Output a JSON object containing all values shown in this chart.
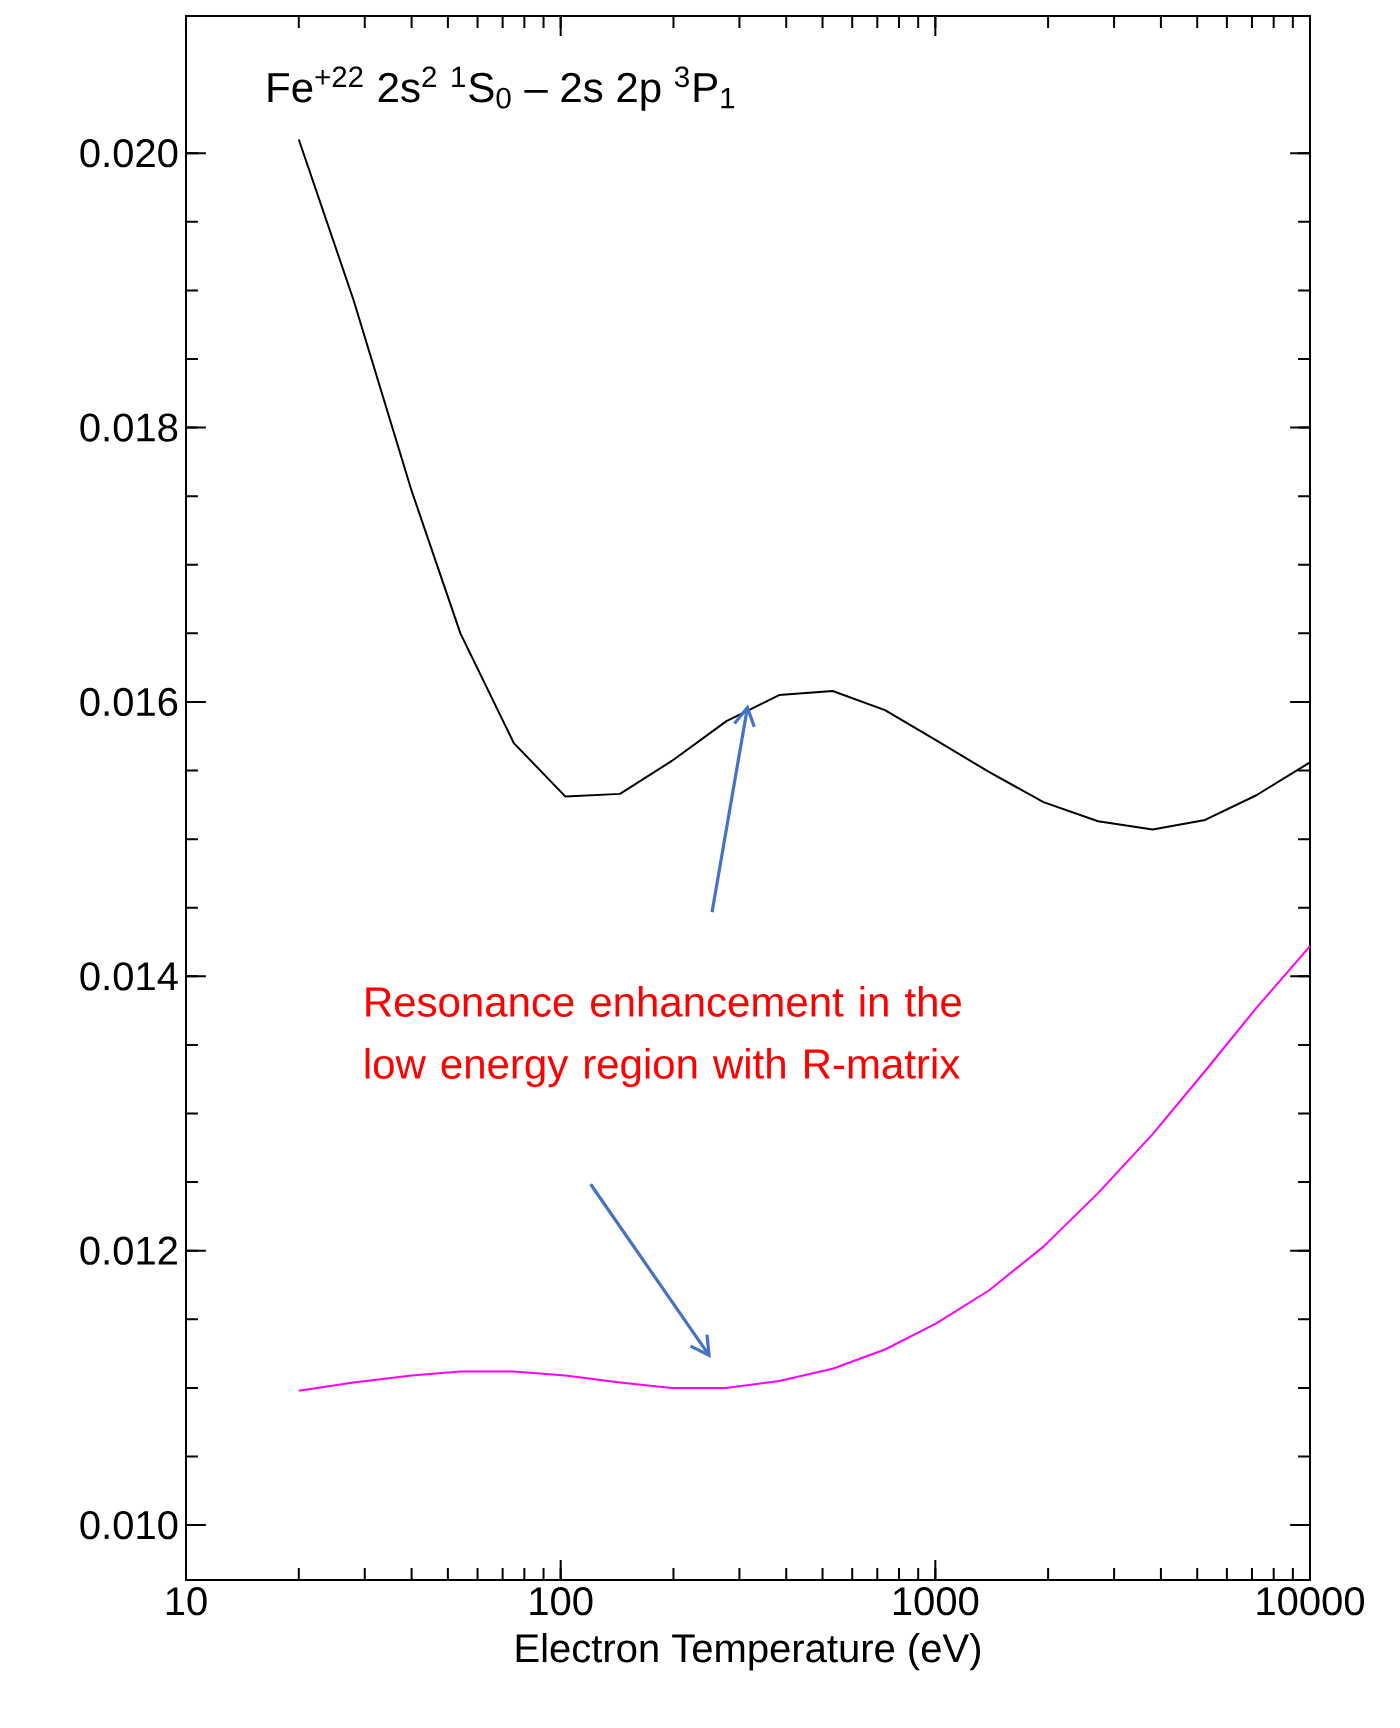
{
  "chart_data": {
    "type": "line",
    "title": "Fe$^{+22}$ 2s$^{2}$ $^{1}$S$_{0}$ – 2s 2p $^{3}$P$_{1}$",
    "xlabel": "Electron Temperature (eV)",
    "log": "x",
    "marker": "none",
    "line_style": "solid",
    "x": [
      20,
      28,
      40,
      54,
      75,
      103,
      144,
      198,
      277,
      383,
      532,
      734,
      1006,
      1390,
      1944,
      2718,
      3803,
      5250,
      7194,
      10000
    ],
    "series": [
      {
        "color": "#000000",
        "values": [
          0.0201,
          0.01893,
          0.01754,
          0.0165,
          0.0157,
          0.01531,
          0.01533,
          0.01557,
          0.01586,
          0.01605,
          0.01608,
          0.01594,
          0.01572,
          0.01549,
          0.01527,
          0.01513,
          0.01507,
          0.01514,
          0.01532,
          0.01556
        ]
      },
      {
        "color": "#ff00ff",
        "values": [
          0.01098,
          0.01104,
          0.01109,
          0.01112,
          0.01112,
          0.01109,
          0.01104,
          0.011,
          0.011,
          0.01105,
          0.01114,
          0.01128,
          0.01147,
          0.01171,
          0.01203,
          0.01242,
          0.01285,
          0.01331,
          0.01377,
          0.01422
        ]
      }
    ],
    "xlim": [
      10,
      10000
    ],
    "xticks": [
      10,
      100,
      1000,
      10000
    ],
    "ylim": [
      0.0096,
      0.021
    ],
    "yticks": [
      {
        "value": 0.01,
        "label": "0.010"
      },
      {
        "value": 0.012,
        "label": "0.012"
      },
      {
        "value": 0.014,
        "label": "0.014"
      },
      {
        "value": 0.016,
        "label": "0.016"
      },
      {
        "value": 0.018,
        "label": "0.018"
      },
      {
        "value": 0.02,
        "label": "0.020"
      }
    ],
    "annotations": [
      "Resonance enhancement in the low energy region with R-matrix"
    ]
  }
}
